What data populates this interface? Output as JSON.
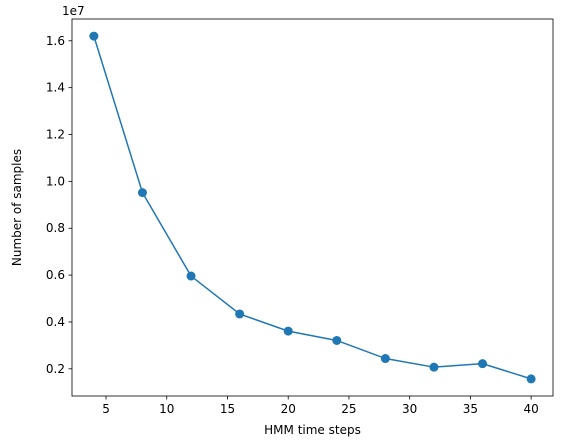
{
  "chart_data": {
    "type": "line",
    "title": "",
    "xlabel": "HMM time steps",
    "ylabel": "Number of samples",
    "y_offset_text": "1e7",
    "x": [
      4,
      8,
      12,
      16,
      20,
      24,
      28,
      32,
      36,
      40
    ],
    "series": [
      {
        "values": [
          16200000,
          9520000,
          5960000,
          4340000,
          3610000,
          3210000,
          2440000,
          2070000,
          2220000,
          1570000
        ],
        "color": "#1f77b4",
        "marker": "circle"
      }
    ],
    "xlim": [
      2.2,
      41.8
    ],
    "ylim": [
      840000,
      16930000
    ],
    "x_ticks": [
      5,
      10,
      15,
      20,
      25,
      30,
      35,
      40
    ],
    "x_tick_labels": [
      "5",
      "10",
      "15",
      "20",
      "25",
      "30",
      "35",
      "40"
    ],
    "y_ticks": [
      2000000,
      4000000,
      6000000,
      8000000,
      10000000,
      12000000,
      14000000,
      16000000
    ],
    "y_tick_labels": [
      "0.2",
      "0.4",
      "0.6",
      "0.8",
      "1.0",
      "1.2",
      "1.4",
      "1.6"
    ],
    "grid": false,
    "legend": "none"
  }
}
